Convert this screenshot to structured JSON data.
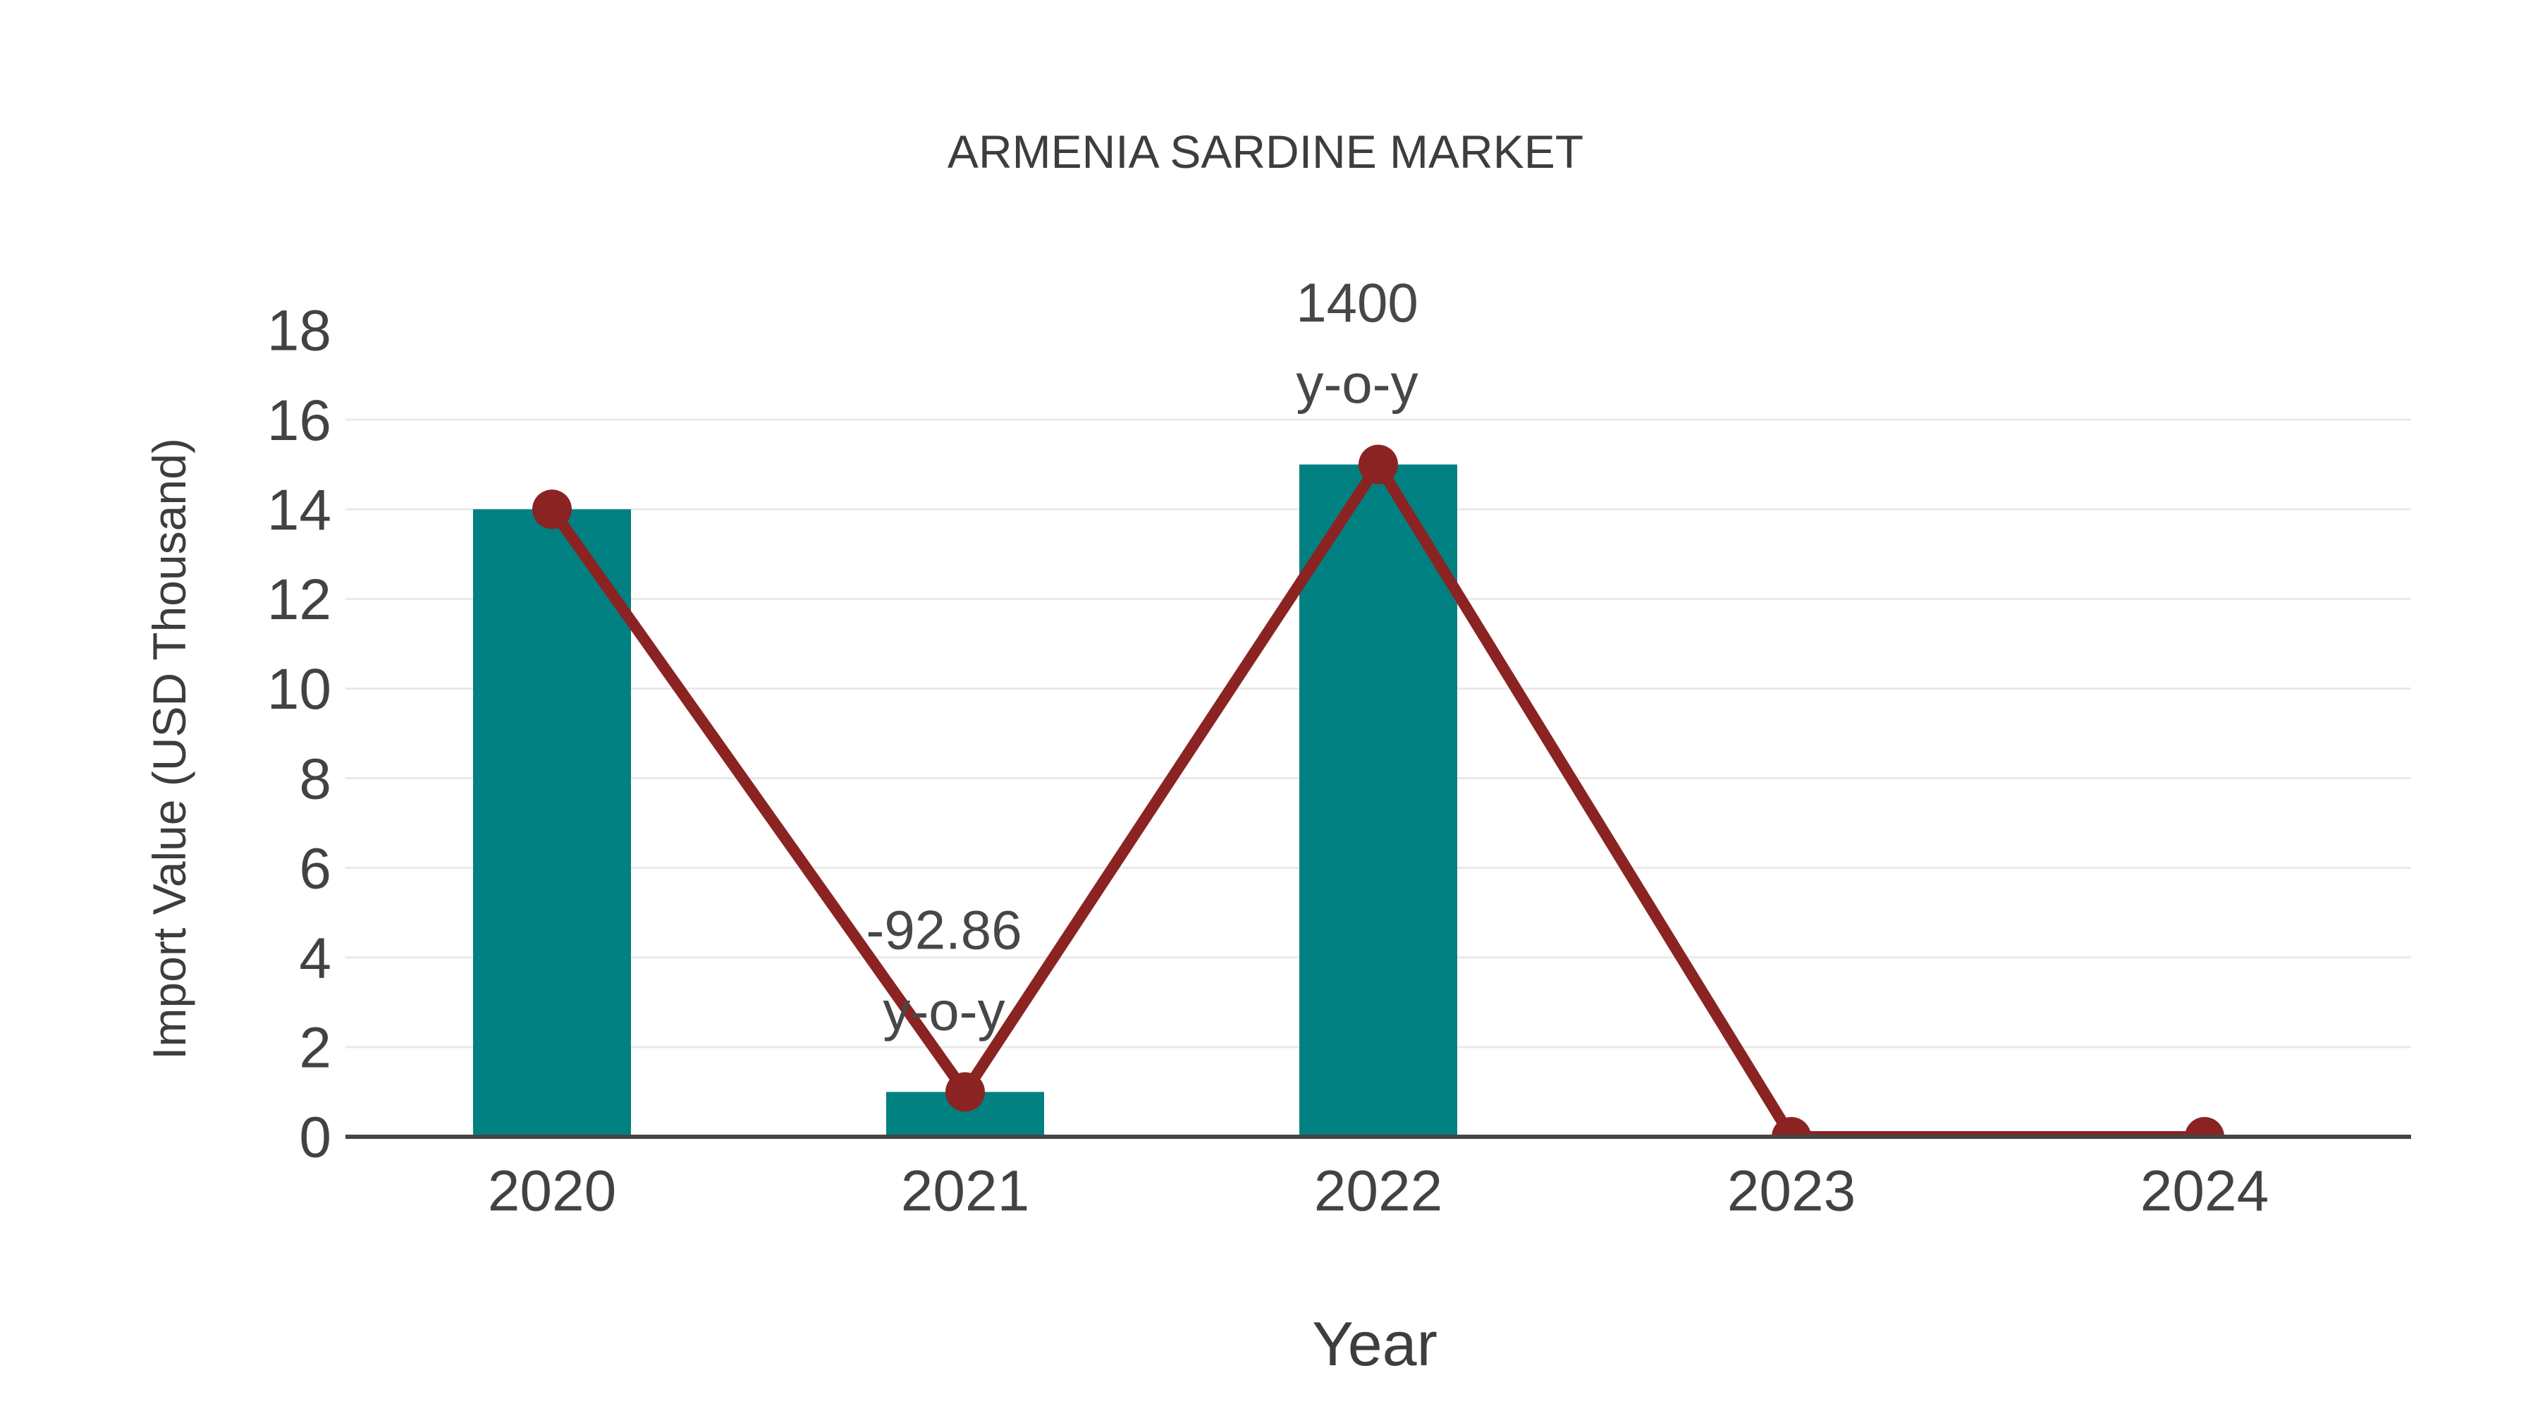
{
  "page": {
    "background": "#ffffff"
  },
  "chart_data": {
    "type": "bar+line",
    "title": "ARMENIA SARDINE MARKET",
    "xlabel": "Year",
    "ylabel": "Import Value (USD Thousand)",
    "categories": [
      "2020",
      "2021",
      "2022",
      "2023",
      "2024"
    ],
    "series": [
      {
        "name": "Import Value bars",
        "type": "bar",
        "values": [
          14,
          1,
          15,
          0,
          0
        ],
        "color": "#008080"
      },
      {
        "name": "Import Value line",
        "type": "line",
        "values": [
          14,
          1,
          15,
          0,
          0
        ],
        "color": "#8B2323"
      }
    ],
    "ylim": [
      0,
      18
    ],
    "yticks": [
      0,
      2,
      4,
      6,
      8,
      10,
      12,
      14,
      16,
      18
    ],
    "grid": "horizontal-only",
    "legend_position": "none",
    "annotations": [
      {
        "category": "2021",
        "lines": [
          "-92.86",
          "y-o-y"
        ],
        "anchor_value": 1
      },
      {
        "category": "2022",
        "lines": [
          "1400",
          "y-o-y"
        ],
        "anchor_value": 15
      }
    ],
    "colors": {
      "bar": "#008080",
      "line": "#8B2323",
      "marker": "#8B2323",
      "grid": "#e9e9e9",
      "axis_line": "#444444",
      "tick_text": "#424242",
      "annotation_text": "#474747",
      "title_text": "#3d3d3d"
    }
  }
}
